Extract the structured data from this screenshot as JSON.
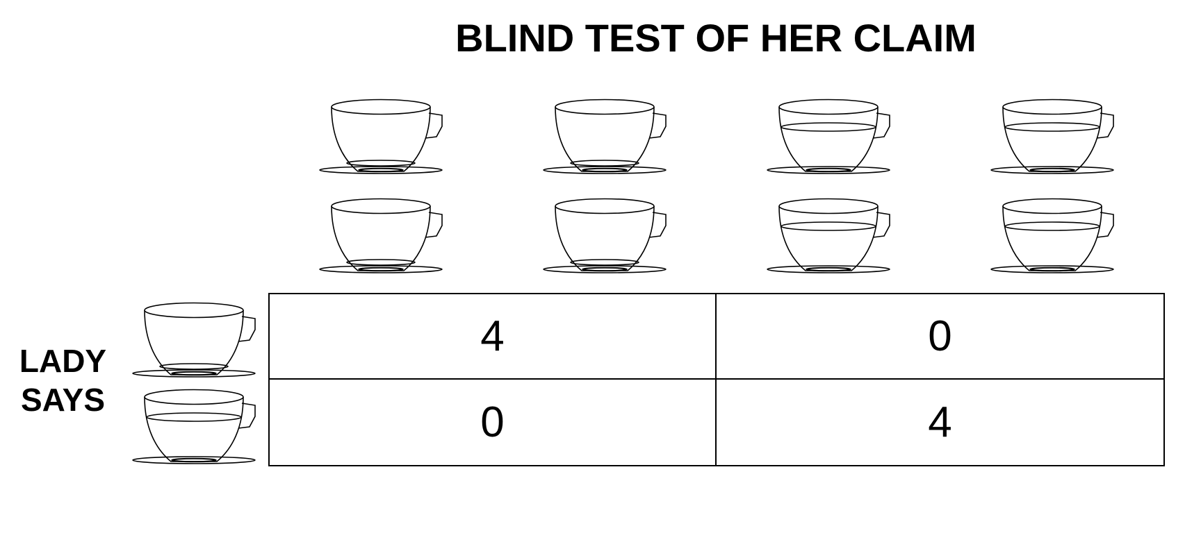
{
  "title": "BLIND TEST OF HER CLAIM",
  "row_label": {
    "line1": "LADY",
    "line2": "SAYS"
  },
  "cup_columns": [
    {
      "kind": "shallow-fill",
      "icon": "teacup-low-fill-icon"
    },
    {
      "kind": "shallow-fill",
      "icon": "teacup-low-fill-icon"
    },
    {
      "kind": "deep-fill",
      "icon": "teacup-high-fill-icon"
    },
    {
      "kind": "deep-fill",
      "icon": "teacup-high-fill-icon"
    }
  ],
  "cup_rows_per_column": 2,
  "row_cups": [
    {
      "kind": "shallow-fill",
      "icon": "teacup-low-fill-icon"
    },
    {
      "kind": "deep-fill",
      "icon": "teacup-high-fill-icon"
    }
  ],
  "table": [
    [
      "4",
      "0"
    ],
    [
      "0",
      "4"
    ]
  ],
  "colors": {
    "line": "#000000",
    "background": "#ffffff"
  }
}
